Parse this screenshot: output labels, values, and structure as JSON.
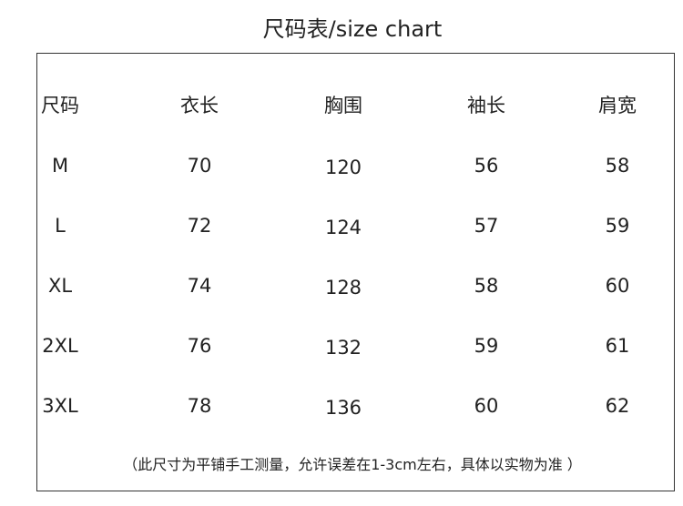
{
  "title": "尺码表/size chart",
  "headers": [
    "尺码",
    "衣长",
    "胸围",
    "袖长",
    "肩宽"
  ],
  "rows": [
    [
      "M",
      "70",
      "120",
      "56",
      "58"
    ],
    [
      "L",
      "72",
      "124",
      "57",
      "59"
    ],
    [
      "XL",
      "74",
      "128",
      "58",
      "60"
    ],
    [
      "2XL",
      "76",
      "132",
      "59",
      "61"
    ],
    [
      "3XL",
      "78",
      "136",
      "60",
      "62"
    ]
  ],
  "note": "（此尺寸为平铺手工测量，允许误差在1-3cm左右，具体以实物为准 ）"
}
